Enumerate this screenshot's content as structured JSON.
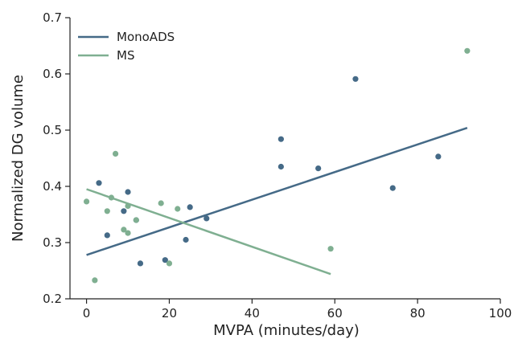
{
  "chart_data": {
    "type": "scatter",
    "xlabel": "MVPA (minutes/day)",
    "ylabel": "Normalized DG volume",
    "xlim": [
      -4,
      100
    ],
    "ylim": [
      0.2,
      0.7
    ],
    "xticks": [
      0,
      20,
      40,
      60,
      80,
      100
    ],
    "yticks": [
      0.2,
      0.3,
      0.4,
      0.5,
      0.6,
      0.7
    ],
    "legend_position": "top-left",
    "grid": false,
    "series": [
      {
        "name": "MonoADS",
        "color": "#456a87",
        "points": [
          [
            3,
            0.406
          ],
          [
            5,
            0.313
          ],
          [
            9,
            0.356
          ],
          [
            10,
            0.39
          ],
          [
            12,
            0.34
          ],
          [
            13,
            0.263
          ],
          [
            19,
            0.269
          ],
          [
            24,
            0.305
          ],
          [
            25,
            0.363
          ],
          [
            29,
            0.343
          ],
          [
            47,
            0.484
          ],
          [
            47,
            0.435
          ],
          [
            56,
            0.432
          ],
          [
            65,
            0.591
          ],
          [
            74,
            0.397
          ],
          [
            85,
            0.453
          ]
        ],
        "fit": [
          [
            0,
            0.278
          ],
          [
            92,
            0.504
          ]
        ]
      },
      {
        "name": "MS",
        "color": "#7faf91",
        "points": [
          [
            0,
            0.373
          ],
          [
            2,
            0.233
          ],
          [
            5,
            0.356
          ],
          [
            6,
            0.38
          ],
          [
            7,
            0.458
          ],
          [
            9,
            0.323
          ],
          [
            10,
            0.365
          ],
          [
            10,
            0.317
          ],
          [
            12,
            0.34
          ],
          [
            18,
            0.37
          ],
          [
            20,
            0.263
          ],
          [
            22,
            0.36
          ],
          [
            59,
            0.289
          ],
          [
            92,
            0.641
          ]
        ],
        "fit": [
          [
            0,
            0.395
          ],
          [
            59,
            0.244
          ]
        ]
      }
    ]
  }
}
